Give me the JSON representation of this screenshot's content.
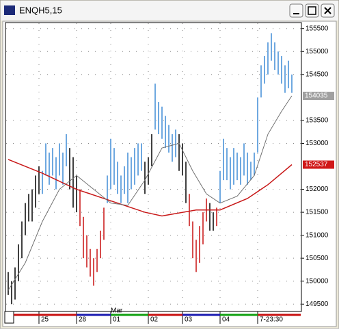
{
  "window": {
    "title": "ENQH5,15"
  },
  "chart_data": {
    "type": "ohlc",
    "ylim": [
      149340,
      155630
    ],
    "yticks": [
      155500,
      155000,
      154500,
      153500,
      153000,
      152000,
      151500,
      151000,
      150500,
      150000,
      149500
    ],
    "markers": [
      {
        "value": 154035,
        "color": "#a0a0a0"
      },
      {
        "value": 152537,
        "color": "#d01818"
      }
    ],
    "palette": {
      "k": "#000000",
      "b": "#3d8ad6",
      "r": "#c81010"
    },
    "high": [
      150200,
      150000,
      150300,
      150800,
      151300,
      151700,
      151900,
      152000,
      152300,
      152500,
      152400,
      153000,
      152800,
      152900,
      152700,
      153000,
      152800,
      153200,
      152900,
      152700,
      152300,
      152000,
      151400,
      151000,
      150700,
      150500,
      150700,
      151100,
      151600,
      152300,
      153100,
      152900,
      152600,
      152300,
      152500,
      152800,
      152700,
      152900,
      153000,
      153000,
      152600,
      152700,
      153200,
      154300,
      153900,
      153800,
      153600,
      153400,
      153200,
      153300,
      153200,
      153000,
      152600,
      151900,
      151300,
      150900,
      151200,
      151500,
      151800,
      151700,
      151500,
      151600,
      152400,
      153100,
      152900,
      152700,
      152900,
      152800,
      152700,
      153000,
      152800,
      152600,
      152800,
      154000,
      154700,
      154900,
      155200,
      155400,
      155200,
      155000,
      154900,
      154700,
      154800,
      154500
    ],
    "low": [
      149700,
      149500,
      149600,
      150000,
      150500,
      151000,
      151300,
      151300,
      151600,
      151900,
      151900,
      152300,
      152100,
      152300,
      152000,
      152300,
      152100,
      152500,
      152000,
      151600,
      151500,
      151200,
      150500,
      150300,
      150100,
      149900,
      150200,
      150500,
      150900,
      151700,
      152000,
      152100,
      151900,
      151700,
      151900,
      151700,
      152000,
      152100,
      152300,
      152400,
      151900,
      152100,
      152500,
      153300,
      153200,
      153100,
      152900,
      152800,
      152600,
      152700,
      152400,
      152300,
      151700,
      151200,
      150500,
      150200,
      150400,
      150800,
      151300,
      151100,
      151100,
      151200,
      151700,
      152200,
      152200,
      152000,
      152100,
      152200,
      152100,
      152300,
      152100,
      152200,
      152300,
      152800,
      154000,
      154300,
      154500,
      154800,
      154600,
      154500,
      154300,
      154100,
      154200,
      154100
    ],
    "colors": [
      "k",
      "k",
      "k",
      "k",
      "k",
      "k",
      "k",
      "k",
      "k",
      "k",
      "b",
      "b",
      "b",
      "b",
      "b",
      "b",
      "b",
      "b",
      "k",
      "k",
      "k",
      "r",
      "r",
      "r",
      "r",
      "r",
      "r",
      "r",
      "r",
      "b",
      "b",
      "b",
      "b",
      "b",
      "b",
      "b",
      "b",
      "b",
      "b",
      "b",
      "k",
      "k",
      "k",
      "b",
      "b",
      "b",
      "b",
      "b",
      "b",
      "b",
      "k",
      "k",
      "k",
      "r",
      "r",
      "r",
      "r",
      "r",
      "r",
      "k",
      "k",
      "r",
      "b",
      "b",
      "b",
      "b",
      "b",
      "b",
      "b",
      "b",
      "b",
      "b",
      "b",
      "b",
      "b",
      "b",
      "b",
      "b",
      "b",
      "b",
      "b",
      "b",
      "b",
      "b"
    ],
    "ma_slow": {
      "color": "#c81818",
      "x": [
        0,
        10,
        20,
        30,
        40,
        45,
        55,
        62,
        70,
        76,
        83
      ],
      "values": [
        152650,
        152350,
        152000,
        151750,
        151500,
        151420,
        151550,
        151550,
        151800,
        152100,
        152537
      ]
    },
    "ma_fast": {
      "color": "#707070",
      "x": [
        0,
        5,
        10,
        15,
        20,
        25,
        30,
        35,
        40,
        45,
        50,
        54,
        58,
        62,
        67,
        72,
        76,
        80,
        83
      ],
      "values": [
        149800,
        150400,
        151300,
        152000,
        152300,
        152000,
        151700,
        151650,
        152200,
        152900,
        153000,
        152400,
        151900,
        151700,
        151850,
        152300,
        153200,
        153700,
        154035
      ]
    },
    "x_labels": [
      {
        "index": 9,
        "label": "25"
      },
      {
        "index": 20,
        "label": "28"
      },
      {
        "index": 30,
        "label": "01"
      },
      {
        "index": 41,
        "label": "02"
      },
      {
        "index": 51,
        "label": "03"
      },
      {
        "index": 62,
        "label": "04"
      },
      {
        "index": 73,
        "label": "7-23:30"
      }
    ],
    "month_label": {
      "index": 30,
      "label": "Mar"
    }
  }
}
